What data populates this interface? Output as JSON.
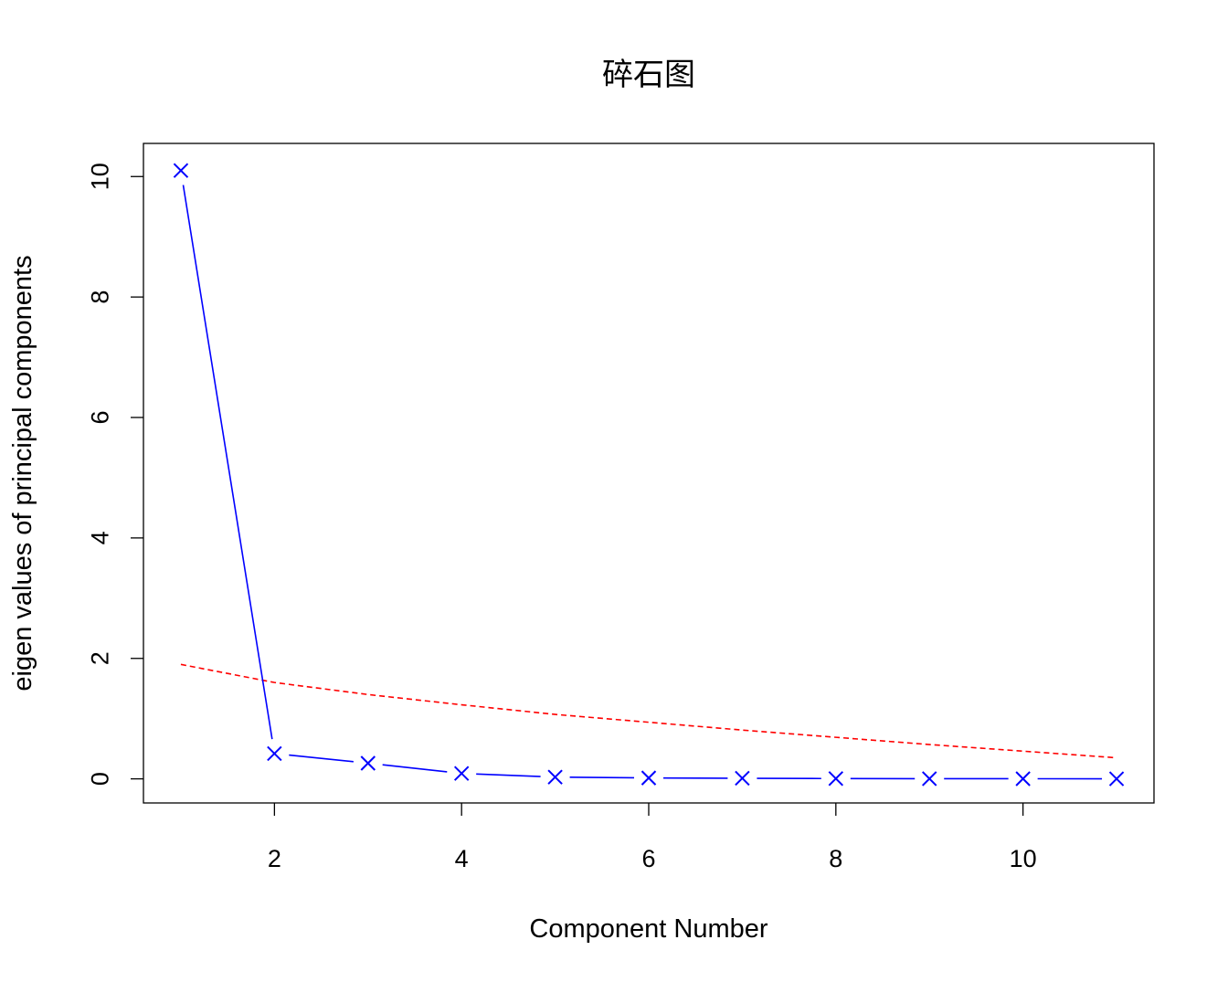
{
  "chart_data": {
    "type": "line",
    "title": "碎石图",
    "xlabel": "Component Number",
    "ylabel": "eigen values of principal components",
    "xlim": [
      0.6,
      11.4
    ],
    "ylim": [
      -0.4,
      10.55
    ],
    "x_ticks": [
      2,
      4,
      6,
      8,
      10
    ],
    "y_ticks": [
      0,
      2,
      4,
      6,
      8,
      10
    ],
    "x_tick_labels": [
      "2",
      "4",
      "6",
      "8",
      "10"
    ],
    "y_tick_labels": [
      "0",
      "2",
      "4",
      "6",
      "8",
      "10"
    ],
    "grid": false,
    "legend": "none",
    "series": [
      {
        "style": "x-markers-with-lines",
        "color": "#0000ff",
        "x": [
          1,
          2,
          3,
          4,
          5,
          6,
          7,
          8,
          9,
          10,
          11
        ],
        "values": [
          10.1,
          0.42,
          0.26,
          0.09,
          0.03,
          0.015,
          0.01,
          0.005,
          0.003,
          0.002,
          0.001
        ]
      },
      {
        "style": "dashed-line",
        "color": "#ff0000",
        "x": [
          1,
          2,
          3,
          4,
          5,
          6,
          7,
          8,
          9,
          10,
          11
        ],
        "values": [
          1.9,
          1.6,
          1.4,
          1.23,
          1.07,
          0.94,
          0.81,
          0.69,
          0.57,
          0.46,
          0.35
        ]
      }
    ]
  }
}
